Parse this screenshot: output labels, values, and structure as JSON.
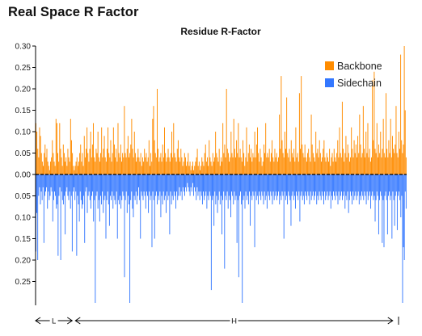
{
  "page": {
    "title": "Real Space R Factor"
  },
  "colors": {
    "backbone": "#ff8c00",
    "sidechain": "#3377ff",
    "axis": "#000000",
    "zero_line": "#000000"
  },
  "chart_data": {
    "type": "bar",
    "title": "Residue R-Factor",
    "xlabel": "",
    "ylabel": "",
    "ylim": [
      -0.3,
      0.3
    ],
    "grid": false,
    "legend_position": "top-right",
    "y_ticks": [
      {
        "value": 0.3,
        "label": "0.30"
      },
      {
        "value": 0.25,
        "label": "0.25"
      },
      {
        "value": 0.2,
        "label": "0.20"
      },
      {
        "value": 0.15,
        "label": "0.15"
      },
      {
        "value": 0.1,
        "label": "0.10"
      },
      {
        "value": 0.05,
        "label": "0.05"
      },
      {
        "value": 0.0,
        "label": "0.00"
      },
      {
        "value": -0.05,
        "label": "0.05"
      },
      {
        "value": -0.1,
        "label": "0.10"
      },
      {
        "value": -0.15,
        "label": "0.15"
      },
      {
        "value": -0.2,
        "label": "0.20"
      },
      {
        "value": -0.25,
        "label": "0.25"
      }
    ],
    "series": [
      {
        "name": "Backbone",
        "color": "#ff8c00",
        "values": [
          0.12,
          0.1,
          0.06,
          0.04,
          0.11,
          0.09,
          0.05,
          0.03,
          0.02,
          0.05,
          0.07,
          0.04,
          0.06,
          0.03,
          0.02,
          0.01,
          0.03,
          0.04,
          0.08,
          0.05,
          0.03,
          0.02,
          0.13,
          0.12,
          0.05,
          0.03,
          0.12,
          0.06,
          0.04,
          0.02,
          0.07,
          0.05,
          0.03,
          0.04,
          0.02,
          0.06,
          0.04,
          0.03,
          0.13,
          0.08,
          0.05,
          0.02,
          0.01,
          0.02,
          0.03,
          0.04,
          0.02,
          0.03,
          0.05,
          0.07,
          0.03,
          0.05,
          0.02,
          0.09,
          0.04,
          0.06,
          0.11,
          0.05,
          0.03,
          0.06,
          0.1,
          0.04,
          0.07,
          0.12,
          0.04,
          0.03,
          0.06,
          0.05,
          0.1,
          0.04,
          0.03,
          0.05,
          0.11,
          0.04,
          0.06,
          0.09,
          0.04,
          0.03,
          0.06,
          0.11,
          0.05,
          0.04,
          0.08,
          0.03,
          0.05,
          0.11,
          0.07,
          0.04,
          0.06,
          0.03,
          0.12,
          0.05,
          0.04,
          0.07,
          0.03,
          0.05,
          0.04,
          0.16,
          0.05,
          0.04,
          0.06,
          0.09,
          0.04,
          0.05,
          0.07,
          0.13,
          0.06,
          0.04,
          0.1,
          0.05,
          0.03,
          0.04,
          0.06,
          0.04,
          0.03,
          0.05,
          0.02,
          0.04,
          0.03,
          0.06,
          0.04,
          0.05,
          0.03,
          0.04,
          0.08,
          0.02,
          0.05,
          0.03,
          0.13,
          0.16,
          0.08,
          0.05,
          0.04,
          0.2,
          0.06,
          0.03,
          0.04,
          0.05,
          0.03,
          0.07,
          0.04,
          0.11,
          0.05,
          0.03,
          0.04,
          0.06,
          0.04,
          0.03,
          0.05,
          0.1,
          0.04,
          0.12,
          0.05,
          0.04,
          0.03,
          0.06,
          0.08,
          0.04,
          0.03,
          0.06,
          0.04,
          0.02,
          0.03,
          0.05,
          0.04,
          0.02,
          0.03,
          0.05,
          0.02,
          0.03,
          0.01,
          0.02,
          0.03,
          0.01,
          0.02,
          0.03,
          0.04,
          0.06,
          0.02,
          0.03,
          0.01,
          0.02,
          0.04,
          0.03,
          0.02,
          0.05,
          0.07,
          0.03,
          0.04,
          0.02,
          0.08,
          0.04,
          0.03,
          0.02,
          0.05,
          0.03,
          0.04,
          0.1,
          0.05,
          0.04,
          0.03,
          0.06,
          0.02,
          0.04,
          0.03,
          0.12,
          0.05,
          0.07,
          0.04,
          0.2,
          0.06,
          0.05,
          0.03,
          0.04,
          0.1,
          0.05,
          0.04,
          0.13,
          0.06,
          0.04,
          0.08,
          0.05,
          0.12,
          0.04,
          0.06,
          0.04,
          0.03,
          0.08,
          0.05,
          0.02,
          0.04,
          0.11,
          0.03,
          0.05,
          0.07,
          0.04,
          0.06,
          0.03,
          0.05,
          0.04,
          0.1,
          0.04,
          0.07,
          0.11,
          0.05,
          0.03,
          0.06,
          0.04,
          0.02,
          0.03,
          0.07,
          0.05,
          0.12,
          0.04,
          0.05,
          0.04,
          0.06,
          0.03,
          0.05,
          0.08,
          0.04,
          0.03,
          0.06,
          0.04,
          0.05,
          0.03,
          0.04,
          0.14,
          0.06,
          0.23,
          0.08,
          0.05,
          0.04,
          0.1,
          0.06,
          0.18,
          0.05,
          0.04,
          0.06,
          0.03,
          0.08,
          0.05,
          0.04,
          0.06,
          0.03,
          0.11,
          0.04,
          0.05,
          0.03,
          0.19,
          0.06,
          0.23,
          0.07,
          0.05,
          0.04,
          0.07,
          0.04,
          0.03,
          0.05,
          0.06,
          0.04,
          0.03,
          0.14,
          0.07,
          0.05,
          0.04,
          0.03,
          0.1,
          0.05,
          0.06,
          0.04,
          0.08,
          0.05,
          0.03,
          0.04,
          0.06,
          0.08,
          0.04,
          0.03,
          0.05,
          0.04,
          0.03,
          0.06,
          0.02,
          0.04,
          0.05,
          0.03,
          0.06,
          0.04,
          0.03,
          0.05,
          0.08,
          0.04,
          0.11,
          0.05,
          0.04,
          0.17,
          0.06,
          0.03,
          0.05,
          0.09,
          0.04,
          0.07,
          0.05,
          0.03,
          0.04,
          0.11,
          0.06,
          0.04,
          0.08,
          0.05,
          0.07,
          0.04,
          0.09,
          0.05,
          0.14,
          0.07,
          0.04,
          0.05,
          0.16,
          0.06,
          0.04,
          0.1,
          0.05,
          0.12,
          0.04,
          0.06,
          0.03,
          0.04,
          0.22,
          0.08,
          0.24,
          0.06,
          0.05,
          0.12,
          0.04,
          0.07,
          0.05,
          0.1,
          0.04,
          0.06,
          0.13,
          0.05,
          0.04,
          0.19,
          0.06,
          0.04,
          0.08,
          0.05,
          0.13,
          0.04,
          0.09,
          0.06,
          0.05,
          0.07,
          0.16,
          0.05,
          0.04,
          0.1,
          0.06,
          0.28,
          0.08,
          0.05,
          0.07,
          0.3,
          0.15,
          0.04
        ]
      },
      {
        "name": "Sidechain",
        "color": "#3377ff",
        "values": [
          0.18,
          0.09,
          0.2,
          0.05,
          0.03,
          0.07,
          0.04,
          0.06,
          0.03,
          0.16,
          0.05,
          0.04,
          0.03,
          0.08,
          0.04,
          0.06,
          0.05,
          0.03,
          0.04,
          0.11,
          0.06,
          0.04,
          0.05,
          0.08,
          0.07,
          0.19,
          0.05,
          0.03,
          0.2,
          0.04,
          0.06,
          0.07,
          0.05,
          0.14,
          0.04,
          0.03,
          0.05,
          0.06,
          0.04,
          0.08,
          0.05,
          0.18,
          0.04,
          0.03,
          0.06,
          0.04,
          0.19,
          0.05,
          0.07,
          0.11,
          0.04,
          0.06,
          0.08,
          0.07,
          0.05,
          0.16,
          0.04,
          0.03,
          0.09,
          0.05,
          0.04,
          0.06,
          0.08,
          0.05,
          0.04,
          0.11,
          0.06,
          0.3,
          0.05,
          0.04,
          0.08,
          0.06,
          0.11,
          0.05,
          0.07,
          0.04,
          0.09,
          0.06,
          0.05,
          0.15,
          0.06,
          0.04,
          0.07,
          0.12,
          0.05,
          0.06,
          0.04,
          0.08,
          0.05,
          0.06,
          0.07,
          0.04,
          0.15,
          0.06,
          0.07,
          0.05,
          0.08,
          0.06,
          0.04,
          0.05,
          0.24,
          0.06,
          0.04,
          0.09,
          0.05,
          0.07,
          0.3,
          0.06,
          0.04,
          0.08,
          0.1,
          0.05,
          0.06,
          0.04,
          0.07,
          0.05,
          0.03,
          0.06,
          0.15,
          0.04,
          0.05,
          0.06,
          0.04,
          0.05,
          0.08,
          0.04,
          0.05,
          0.09,
          0.04,
          0.06,
          0.05,
          0.17,
          0.04,
          0.06,
          0.15,
          0.05,
          0.04,
          0.07,
          0.05,
          0.06,
          0.04,
          0.1,
          0.05,
          0.07,
          0.04,
          0.06,
          0.05,
          0.09,
          0.04,
          0.06,
          0.05,
          0.14,
          0.04,
          0.07,
          0.05,
          0.06,
          0.04,
          0.05,
          0.08,
          0.04,
          0.06,
          0.05,
          0.03,
          0.05,
          0.04,
          0.06,
          0.03,
          0.04,
          0.05,
          0.03,
          0.04,
          0.02,
          0.03,
          0.04,
          0.05,
          0.03,
          0.04,
          0.02,
          0.05,
          0.03,
          0.04,
          0.06,
          0.03,
          0.05,
          0.04,
          0.06,
          0.04,
          0.05,
          0.07,
          0.04,
          0.06,
          0.05,
          0.04,
          0.08,
          0.05,
          0.06,
          0.04,
          0.05,
          0.27,
          0.06,
          0.05,
          0.12,
          0.04,
          0.07,
          0.05,
          0.09,
          0.06,
          0.04,
          0.07,
          0.05,
          0.14,
          0.06,
          0.04,
          0.22,
          0.05,
          0.06,
          0.04,
          0.08,
          0.05,
          0.06,
          0.1,
          0.04,
          0.05,
          0.07,
          0.04,
          0.06,
          0.05,
          0.16,
          0.06,
          0.24,
          0.05,
          0.04,
          0.07,
          0.3,
          0.06,
          0.05,
          0.08,
          0.04,
          0.06,
          0.05,
          0.07,
          0.04,
          0.12,
          0.05,
          0.06,
          0.04,
          0.05,
          0.17,
          0.04,
          0.06,
          0.05,
          0.07,
          0.04,
          0.05,
          0.06,
          0.04,
          0.05,
          0.07,
          0.04,
          0.06,
          0.05,
          0.08,
          0.04,
          0.05,
          0.06,
          0.04,
          0.05,
          0.07,
          0.04,
          0.06,
          0.05,
          0.04,
          0.06,
          0.05,
          0.04,
          0.07,
          0.05,
          0.06,
          0.04,
          0.05,
          0.15,
          0.04,
          0.06,
          0.05,
          0.07,
          0.04,
          0.05,
          0.06,
          0.12,
          0.05,
          0.04,
          0.06,
          0.05,
          0.08,
          0.04,
          0.05,
          0.06,
          0.04,
          0.11,
          0.05,
          0.04,
          0.06,
          0.05,
          0.07,
          0.04,
          0.05,
          0.06,
          0.04,
          0.05,
          0.07,
          0.04,
          0.06,
          0.05,
          0.04,
          0.06,
          0.05,
          0.04,
          0.07,
          0.05,
          0.06,
          0.04,
          0.05,
          0.06,
          0.04,
          0.05,
          0.07,
          0.04,
          0.06,
          0.05,
          0.04,
          0.06,
          0.05,
          0.04,
          0.08,
          0.05,
          0.06,
          0.04,
          0.05,
          0.06,
          0.04,
          0.05,
          0.07,
          0.04,
          0.06,
          0.05,
          0.04,
          0.06,
          0.05,
          0.04,
          0.08,
          0.05,
          0.06,
          0.04,
          0.09,
          0.06,
          0.04,
          0.05,
          0.07,
          0.04,
          0.06,
          0.05,
          0.04,
          0.06,
          0.05,
          0.04,
          0.07,
          0.05,
          0.06,
          0.04,
          0.05,
          0.06,
          0.04,
          0.05,
          0.07,
          0.04,
          0.06,
          0.05,
          0.04,
          0.08,
          0.05,
          0.04,
          0.06,
          0.05,
          0.11,
          0.06,
          0.04,
          0.05,
          0.14,
          0.06,
          0.04,
          0.05,
          0.16,
          0.06,
          0.17,
          0.05,
          0.04,
          0.06,
          0.14,
          0.05,
          0.04,
          0.06,
          0.05,
          0.15,
          0.04,
          0.06,
          0.12,
          0.05,
          0.04,
          0.13,
          0.05,
          0.04,
          0.06,
          0.1,
          0.05,
          0.3,
          0.17,
          0.2,
          0.04,
          0.08
        ]
      }
    ],
    "segments": [
      {
        "label": "L",
        "start": 0,
        "end": 0.11
      },
      {
        "label": "H",
        "start": 0.11,
        "end": 0.995
      },
      {
        "label": "I",
        "start": 0.995,
        "end": 1.0
      }
    ]
  }
}
